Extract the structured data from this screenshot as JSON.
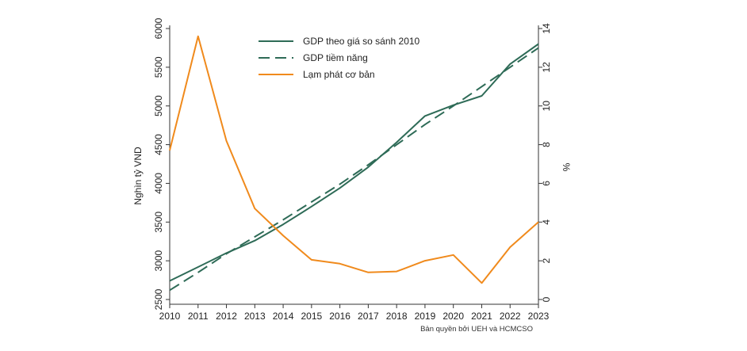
{
  "chart_data": {
    "type": "line",
    "title": "",
    "x": [
      2010,
      2011,
      2012,
      2013,
      2014,
      2015,
      2016,
      2017,
      2018,
      2019,
      2020,
      2021,
      2022,
      2023
    ],
    "x_tick_labels": [
      "2010",
      "2011",
      "2012",
      "2013",
      "2014",
      "2015",
      "2016",
      "2017",
      "2018",
      "2019",
      "2020",
      "2021",
      "2022",
      "2023"
    ],
    "xlim": [
      2010,
      2023
    ],
    "ylabel_left": "Nghìn tỷ VND",
    "ylim_left": [
      2500,
      6000
    ],
    "yticks_left": [
      2500,
      3000,
      3500,
      4000,
      4500,
      5000,
      5500,
      6000
    ],
    "ylabel_right": "%",
    "ylim_right": [
      0,
      14
    ],
    "yticks_right": [
      0,
      2,
      4,
      6,
      8,
      10,
      12,
      14
    ],
    "grid": false,
    "legend_position": "top-center",
    "series": [
      {
        "name": "GDP theo giá so sánh 2010",
        "axis": "left",
        "style": "solid",
        "color": "#2e6b57",
        "values": [
          2740,
          2920,
          3100,
          3260,
          3470,
          3700,
          3940,
          4210,
          4530,
          4870,
          5010,
          5130,
          5540,
          5800
        ]
      },
      {
        "name": "GDP tiềm năng",
        "axis": "left",
        "style": "dashed",
        "color": "#2e6b57",
        "values": [
          2620,
          2850,
          3090,
          3310,
          3530,
          3760,
          3990,
          4240,
          4500,
          4760,
          5000,
          5250,
          5500,
          5750
        ]
      },
      {
        "name": "Lạm phát cơ bản",
        "axis": "right",
        "style": "solid",
        "color": "#f08a1c",
        "values": [
          7.7,
          13.6,
          8.2,
          4.7,
          3.3,
          2.05,
          1.85,
          1.4,
          1.45,
          2.0,
          2.3,
          0.85,
          2.7,
          4.0
        ]
      }
    ],
    "annotation": "Bản quyền bởi UEH và HCMCSO"
  }
}
